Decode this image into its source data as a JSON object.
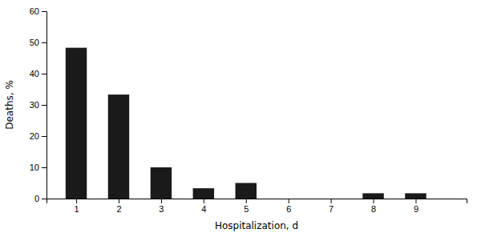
{
  "chart_data": {
    "type": "bar",
    "x": [
      1,
      2,
      3,
      4,
      5,
      6,
      7,
      8,
      9
    ],
    "values": [
      48.3,
      33.3,
      10.0,
      3.3,
      5.0,
      0.0,
      0.0,
      1.7,
      1.7
    ],
    "color": "#1a1a1a",
    "xlabel": "Hospitalization, d",
    "ylabel": "Deaths, %",
    "xlim": [
      0.3,
      10.2
    ],
    "xticks": [
      1,
      2,
      3,
      4,
      5,
      6,
      7,
      8,
      9
    ],
    "ylim": [
      0,
      60
    ],
    "yticks": [
      0,
      10,
      20,
      30,
      40,
      50,
      60
    ],
    "grid": false
  }
}
